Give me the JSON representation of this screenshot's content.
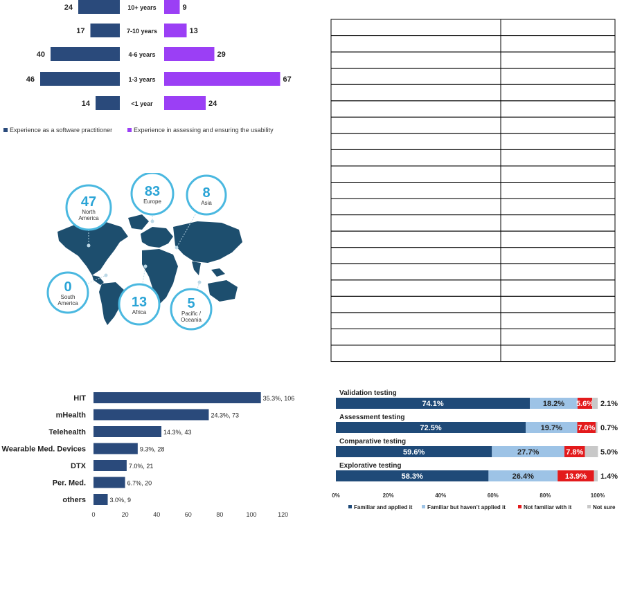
{
  "colors": {
    "navy": "#2a4a7b",
    "purple": "#9b3ff5",
    "map_fill": "#1d4e6e",
    "circle_stroke": "#4ab8e0",
    "circle_text": "#2aa4d6",
    "stack_dark": "#1f4a78",
    "stack_light": "#9dc3e6",
    "stack_red": "#e31a1c",
    "stack_gray": "#c8c8c8"
  },
  "chart_data": [
    {
      "type": "bar",
      "orientation": "diverging-horizontal",
      "categories": [
        "10+ years",
        "7-10 years",
        "4-6 years",
        "1-3 years",
        "<1 year"
      ],
      "series": [
        {
          "name": "Experience as a software practitioner",
          "values": [
            24,
            17,
            40,
            46,
            14
          ]
        },
        {
          "name": "Experience in assessing and ensuring the usability",
          "values": [
            9,
            13,
            29,
            67,
            24
          ]
        }
      ],
      "legend_position": "bottom-left"
    },
    {
      "type": "map",
      "regions": [
        {
          "name": "North America",
          "label_lines": [
            "North",
            "America"
          ],
          "value": 47
        },
        {
          "name": "Europe",
          "label_lines": [
            "Europe"
          ],
          "value": 83
        },
        {
          "name": "Asia",
          "label_lines": [
            "Asia"
          ],
          "value": 8
        },
        {
          "name": "South America",
          "label_lines": [
            "South",
            "America"
          ],
          "value": 0
        },
        {
          "name": "Africa",
          "label_lines": [
            "Africa"
          ],
          "value": 13
        },
        {
          "name": "Pacific / Oceania",
          "label_lines": [
            "Pacific /",
            "Oceania"
          ],
          "value": 5
        }
      ]
    },
    {
      "type": "bar",
      "orientation": "horizontal",
      "categories": [
        "HIT",
        "mHealth",
        "Telehealth",
        "Wearable Med. Devices",
        "DTX",
        "Per. Med.",
        "others"
      ],
      "values": [
        106,
        73,
        43,
        28,
        21,
        20,
        9
      ],
      "data_labels": [
        "35.3%, 106",
        "24.3%, 73",
        "14.3%, 43",
        "9.3%, 28",
        "7.0%, 21",
        "6.7%, 20",
        "3.0%, 9"
      ],
      "xlim": [
        0,
        120
      ],
      "xticks": [
        0,
        20,
        40,
        60,
        80,
        100,
        120
      ]
    },
    {
      "type": "table",
      "rows": 21,
      "columns": 2,
      "cells": []
    },
    {
      "type": "bar",
      "orientation": "horizontal-stacked-100",
      "categories": [
        "Validation testing",
        "Assessment testing",
        "Comparative testing",
        "Explorative testing"
      ],
      "series": [
        {
          "name": "Familiar and applied it",
          "values": [
            74.1,
            72.5,
            59.6,
            58.3
          ],
          "labels": [
            "74.1%",
            "72.5%",
            "59.6%",
            "58.3%"
          ]
        },
        {
          "name": "Familiar but haven’t applied it",
          "values": [
            18.2,
            19.7,
            27.7,
            26.4
          ],
          "labels": [
            "18.2%",
            "19.7%",
            "27.7%",
            "26.4%"
          ]
        },
        {
          "name": "Not familiar with it",
          "values": [
            5.6,
            7.0,
            7.8,
            13.9
          ],
          "labels": [
            "5.6%",
            "7.0%",
            "7.8%",
            "13.9%"
          ]
        },
        {
          "name": "Not sure",
          "values": [
            2.1,
            0.7,
            5.0,
            1.4
          ],
          "labels": [
            "2.1%",
            "0.7%",
            "5.0%",
            "1.4%"
          ]
        }
      ],
      "xlim": [
        0,
        100
      ],
      "xticks": [
        "0%",
        "20%",
        "40%",
        "60%",
        "80%",
        "100%"
      ],
      "legend_position": "bottom"
    }
  ]
}
